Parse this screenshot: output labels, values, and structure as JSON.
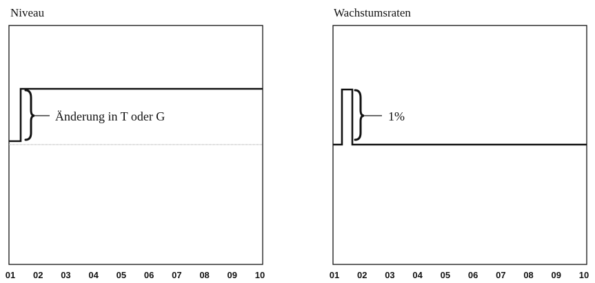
{
  "panels": [
    {
      "title": "Niveau",
      "annotation": "Änderung in T oder G",
      "x_labels": [
        "01",
        "02",
        "03",
        "04",
        "05",
        "06",
        "07",
        "08",
        "09",
        "10"
      ]
    },
    {
      "title": "Wachstumsraten",
      "annotation": "1%",
      "x_labels": [
        "01",
        "02",
        "03",
        "04",
        "05",
        "06",
        "07",
        "08",
        "09",
        "10"
      ]
    }
  ]
}
